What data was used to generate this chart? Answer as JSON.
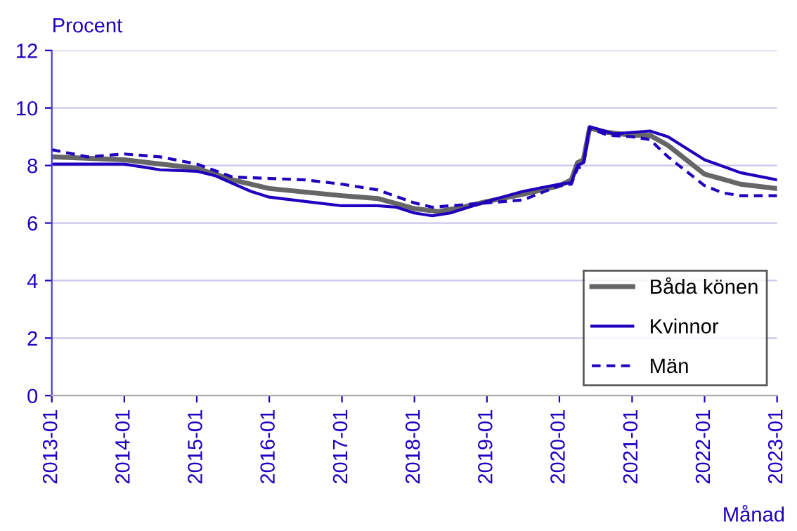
{
  "chart_data": {
    "type": "line",
    "ylabel": "Procent",
    "xlabel": "Månad",
    "ylim": [
      0,
      12
    ],
    "yticks": [
      0,
      2,
      4,
      6,
      8,
      10,
      12
    ],
    "xlim": [
      "2013-01",
      "2023-01"
    ],
    "xticks": [
      "2013-01",
      "2014-01",
      "2015-01",
      "2016-01",
      "2017-01",
      "2018-01",
      "2019-01",
      "2020-01",
      "2021-01",
      "2022-01",
      "2023-01"
    ],
    "grid": "y",
    "legend": "bottom right",
    "series": [
      {
        "name": "Båda könen",
        "color": "#666666",
        "line_style": "solid",
        "x": [
          "2013-01",
          "2014-01",
          "2015-01",
          "2015-07",
          "2016-01",
          "2017-01",
          "2017-07",
          "2018-01",
          "2018-05",
          "2018-09",
          "2019-01",
          "2019-07",
          "2020-01",
          "2020-03",
          "2020-04",
          "2020-05",
          "2020-06",
          "2020-09",
          "2021-01",
          "2021-04",
          "2021-07",
          "2022-01",
          "2022-07",
          "2023-01"
        ],
        "values": [
          8.3,
          8.2,
          7.9,
          7.5,
          7.2,
          6.95,
          6.85,
          6.5,
          6.4,
          6.55,
          6.75,
          7.0,
          7.3,
          7.5,
          8.1,
          8.2,
          9.3,
          9.15,
          9.05,
          9.05,
          8.7,
          7.7,
          7.35,
          7.2
        ]
      },
      {
        "name": "Kvinnor",
        "color": "#1e00be",
        "line_style": "solid",
        "x": [
          "2013-01",
          "2013-10",
          "2014-01",
          "2014-07",
          "2015-01",
          "2015-04",
          "2015-10",
          "2016-01",
          "2016-07",
          "2017-01",
          "2017-07",
          "2017-10",
          "2018-01",
          "2018-04",
          "2018-07",
          "2019-01",
          "2019-07",
          "2020-01",
          "2020-03",
          "2020-04",
          "2020-05",
          "2020-06",
          "2020-10",
          "2021-01",
          "2021-04",
          "2021-07",
          "2022-01",
          "2022-07",
          "2023-01"
        ],
        "values": [
          8.05,
          8.05,
          8.05,
          7.85,
          7.8,
          7.65,
          7.1,
          6.9,
          6.75,
          6.6,
          6.6,
          6.55,
          6.35,
          6.25,
          6.35,
          6.75,
          7.1,
          7.35,
          7.4,
          8.0,
          8.1,
          9.35,
          9.1,
          9.15,
          9.2,
          9.0,
          8.2,
          7.75,
          7.5
        ]
      },
      {
        "name": "Män",
        "color": "#1e00be",
        "line_style": "dashed",
        "x": [
          "2013-01",
          "2013-07",
          "2014-01",
          "2014-07",
          "2015-01",
          "2015-07",
          "2016-01",
          "2016-07",
          "2017-01",
          "2017-07",
          "2018-01",
          "2018-04",
          "2018-10",
          "2019-01",
          "2019-07",
          "2020-01",
          "2020-03",
          "2020-04",
          "2020-05",
          "2020-06",
          "2020-09",
          "2021-01",
          "2021-04",
          "2021-07",
          "2022-01",
          "2022-04",
          "2022-07",
          "2023-01"
        ],
        "values": [
          8.55,
          8.3,
          8.4,
          8.3,
          8.05,
          7.6,
          7.55,
          7.5,
          7.35,
          7.15,
          6.7,
          6.55,
          6.65,
          6.7,
          6.8,
          7.3,
          7.35,
          7.9,
          8.0,
          9.3,
          9.05,
          9.0,
          8.9,
          8.3,
          7.3,
          7.05,
          6.95,
          6.95
        ]
      }
    ]
  }
}
